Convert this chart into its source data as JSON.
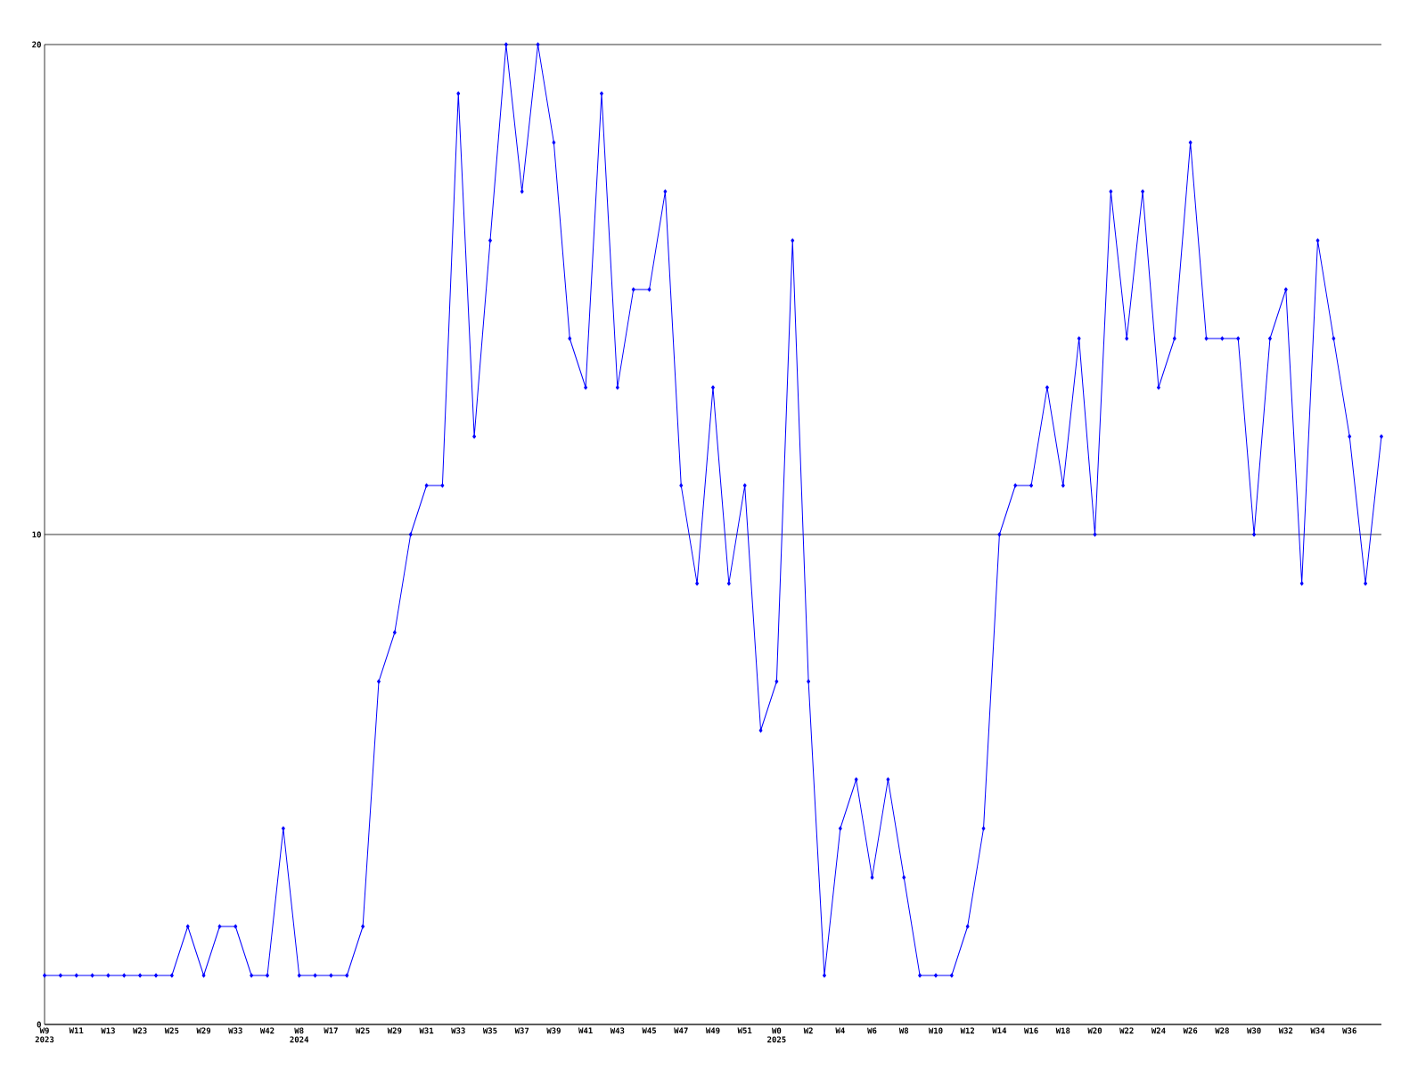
{
  "chart_data": {
    "type": "line",
    "categories": [
      "W9 2023",
      null,
      "W11",
      null,
      "W13",
      null,
      "W23",
      null,
      "W25",
      null,
      "W29",
      null,
      "W33",
      null,
      "W42",
      null,
      "W8 2024",
      null,
      "W17",
      null,
      "W25",
      null,
      "W29",
      null,
      "W31",
      null,
      "W33",
      null,
      "W35",
      null,
      "W37",
      null,
      "W39",
      null,
      "W41",
      null,
      "W43",
      null,
      "W45",
      null,
      "W47",
      null,
      "W49",
      null,
      "W51",
      null,
      "W0 2025",
      null,
      "W2",
      null,
      "W4",
      null,
      "W6",
      null,
      "W8",
      null,
      "W10",
      null,
      "W12",
      null,
      "W14",
      null,
      "W16",
      null,
      "W18",
      null,
      "W20",
      null,
      "W22",
      null,
      "W24",
      null,
      "W26",
      null,
      "W28",
      null,
      "W30",
      null,
      "W32",
      null,
      "W34",
      null,
      "W36",
      null,
      null
    ],
    "series": [
      {
        "color": "#0000ff",
        "values": [
          1,
          1,
          1,
          1,
          1,
          1,
          1,
          1,
          1,
          2,
          1,
          2,
          2,
          1,
          1,
          4,
          1,
          1,
          1,
          1,
          2,
          7,
          8,
          10,
          11,
          11,
          19,
          12,
          16,
          20,
          17,
          20,
          18,
          14,
          13,
          19,
          13,
          15,
          15,
          17,
          11,
          9,
          13,
          9,
          11,
          6,
          7,
          16,
          7,
          1,
          4,
          5,
          3,
          5,
          3,
          1,
          1,
          1,
          2,
          4,
          10,
          11,
          11,
          13,
          11,
          14,
          10,
          17,
          14,
          17,
          13,
          14,
          18,
          14,
          14,
          14,
          10,
          14,
          15,
          9,
          16,
          14,
          12,
          9,
          12
        ]
      }
    ],
    "ylim": [
      0,
      20
    ],
    "yticks": [
      0,
      10,
      20
    ],
    "grid": "y",
    "marker": "diamond",
    "line_style": "solid"
  }
}
